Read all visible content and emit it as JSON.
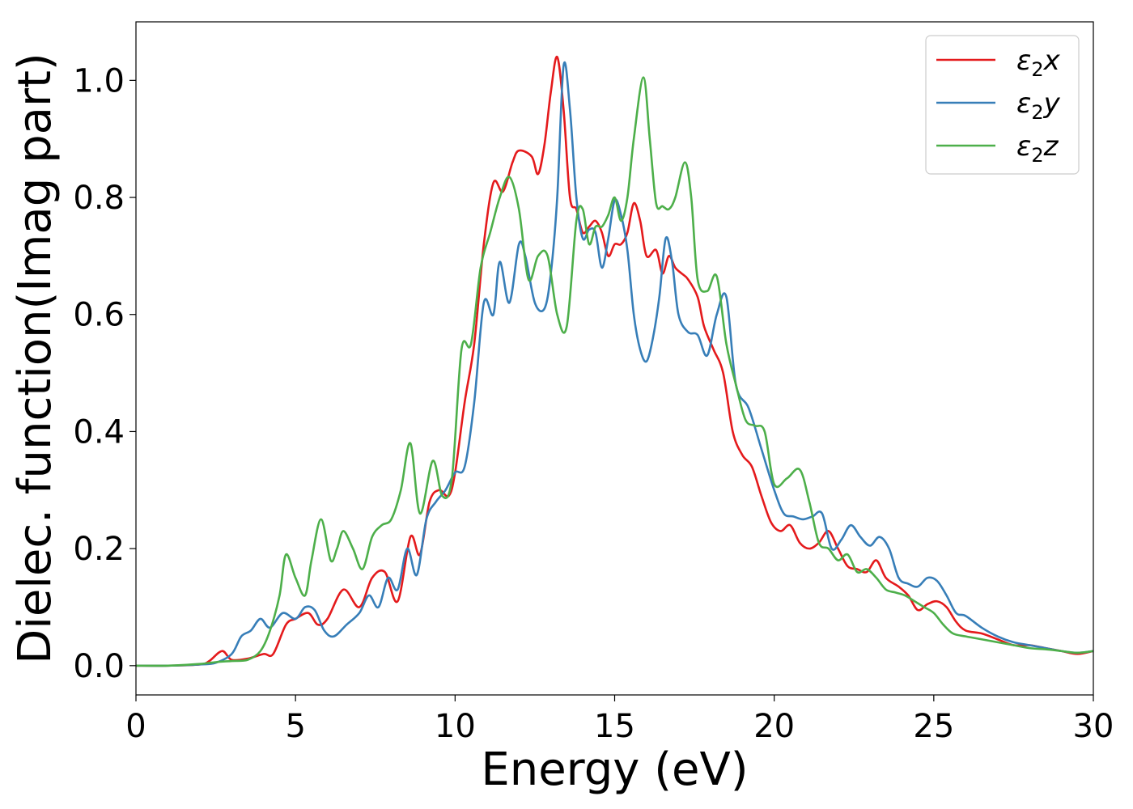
{
  "chart_data": {
    "type": "line",
    "title": "",
    "xlabel": "Energy (eV)",
    "ylabel": "Dielec. function(Imag part)",
    "xlim": [
      0,
      30
    ],
    "ylim": [
      -0.05,
      1.1
    ],
    "xticks": [
      0,
      5,
      10,
      15,
      20,
      25,
      30
    ],
    "yticks": [
      0.0,
      0.2,
      0.4,
      0.6,
      0.8,
      1.0
    ],
    "xtick_labels": [
      "0",
      "5",
      "10",
      "15",
      "20",
      "25",
      "30"
    ],
    "ytick_labels": [
      "0.0",
      "0.2",
      "0.4",
      "0.6",
      "0.8",
      "1.0"
    ],
    "grid": false,
    "legend_position": "top-right",
    "series": [
      {
        "name": "ε2x",
        "legend_base": "ε",
        "legend_sub": "2",
        "legend_tail": "x",
        "color": "#e41a1c",
        "x": [
          0,
          1,
          2,
          2.3,
          2.7,
          3.0,
          3.5,
          4.0,
          4.3,
          4.7,
          5.0,
          5.4,
          5.7,
          6.0,
          6.5,
          7.0,
          7.4,
          7.8,
          8.2,
          8.6,
          8.9,
          9.2,
          9.5,
          9.8,
          10.0,
          10.3,
          10.6,
          10.9,
          11.2,
          11.5,
          11.8,
          12.0,
          12.4,
          12.6,
          12.8,
          13.0,
          13.2,
          13.4,
          13.6,
          13.8,
          14.0,
          14.2,
          14.4,
          14.6,
          14.8,
          15.0,
          15.2,
          15.4,
          15.6,
          15.8,
          16.0,
          16.3,
          16.5,
          16.7,
          16.9,
          17.1,
          17.3,
          17.6,
          17.8,
          18.1,
          18.4,
          18.7,
          19.0,
          19.3,
          19.6,
          19.9,
          20.2,
          20.5,
          20.8,
          21.1,
          21.4,
          21.7,
          22.0,
          22.3,
          22.6,
          22.9,
          23.2,
          23.5,
          23.9,
          24.2,
          24.5,
          24.8,
          25.1,
          25.4,
          25.7,
          26.0,
          26.5,
          27.0,
          27.5,
          28.0,
          28.5,
          29.0,
          29.5,
          30.0
        ],
        "y": [
          0.0,
          0.0,
          0.002,
          0.008,
          0.025,
          0.01,
          0.012,
          0.02,
          0.02,
          0.07,
          0.08,
          0.09,
          0.07,
          0.08,
          0.13,
          0.1,
          0.15,
          0.16,
          0.11,
          0.22,
          0.19,
          0.28,
          0.3,
          0.29,
          0.33,
          0.45,
          0.55,
          0.72,
          0.825,
          0.81,
          0.86,
          0.88,
          0.87,
          0.84,
          0.89,
          0.98,
          1.04,
          0.95,
          0.8,
          0.78,
          0.74,
          0.75,
          0.76,
          0.74,
          0.7,
          0.72,
          0.72,
          0.74,
          0.79,
          0.76,
          0.7,
          0.71,
          0.67,
          0.7,
          0.68,
          0.67,
          0.66,
          0.63,
          0.58,
          0.54,
          0.5,
          0.4,
          0.36,
          0.34,
          0.29,
          0.245,
          0.23,
          0.24,
          0.21,
          0.2,
          0.21,
          0.23,
          0.2,
          0.17,
          0.165,
          0.16,
          0.18,
          0.15,
          0.135,
          0.12,
          0.095,
          0.105,
          0.11,
          0.1,
          0.075,
          0.06,
          0.055,
          0.045,
          0.035,
          0.035,
          0.03,
          0.025,
          0.02,
          0.025
        ]
      },
      {
        "name": "ε2y",
        "legend_base": "ε",
        "legend_sub": "2",
        "legend_tail": "y",
        "color": "#377eb8",
        "x": [
          0,
          1,
          2,
          2.5,
          3.0,
          3.3,
          3.6,
          3.9,
          4.2,
          4.6,
          5.0,
          5.3,
          5.6,
          5.9,
          6.2,
          6.6,
          7.0,
          7.3,
          7.6,
          7.9,
          8.2,
          8.5,
          8.8,
          9.1,
          9.4,
          9.7,
          10.0,
          10.3,
          10.6,
          10.9,
          11.2,
          11.4,
          11.7,
          12.0,
          12.2,
          12.5,
          12.8,
          13.0,
          13.2,
          13.4,
          13.6,
          13.8,
          14.0,
          14.2,
          14.4,
          14.6,
          14.8,
          15.0,
          15.2,
          15.4,
          15.6,
          15.8,
          16.0,
          16.2,
          16.4,
          16.6,
          16.8,
          17.0,
          17.3,
          17.6,
          17.9,
          18.2,
          18.5,
          18.8,
          19.2,
          19.6,
          20.0,
          20.3,
          20.6,
          20.9,
          21.2,
          21.5,
          21.8,
          22.1,
          22.4,
          22.7,
          23.0,
          23.3,
          23.6,
          23.9,
          24.2,
          24.5,
          24.8,
          25.1,
          25.4,
          25.7,
          26.0,
          26.5,
          27.0,
          27.5,
          28.0,
          28.5,
          29.0,
          29.5,
          30.0
        ],
        "y": [
          0.0,
          0.0,
          0.002,
          0.005,
          0.02,
          0.05,
          0.06,
          0.08,
          0.065,
          0.09,
          0.08,
          0.1,
          0.095,
          0.06,
          0.05,
          0.07,
          0.09,
          0.12,
          0.1,
          0.15,
          0.13,
          0.2,
          0.155,
          0.25,
          0.28,
          0.3,
          0.33,
          0.34,
          0.45,
          0.62,
          0.6,
          0.69,
          0.62,
          0.72,
          0.7,
          0.62,
          0.61,
          0.67,
          0.8,
          1.025,
          0.95,
          0.8,
          0.73,
          0.745,
          0.74,
          0.68,
          0.73,
          0.795,
          0.77,
          0.71,
          0.6,
          0.54,
          0.52,
          0.56,
          0.63,
          0.73,
          0.69,
          0.6,
          0.57,
          0.565,
          0.53,
          0.6,
          0.63,
          0.48,
          0.44,
          0.37,
          0.3,
          0.26,
          0.255,
          0.25,
          0.255,
          0.26,
          0.2,
          0.215,
          0.24,
          0.22,
          0.205,
          0.22,
          0.2,
          0.15,
          0.14,
          0.135,
          0.15,
          0.145,
          0.12,
          0.09,
          0.085,
          0.065,
          0.05,
          0.04,
          0.035,
          0.03,
          0.025,
          0.022,
          0.025
        ]
      },
      {
        "name": "ε2z",
        "legend_base": "ε",
        "legend_sub": "2",
        "legend_tail": "z",
        "color": "#4daf4a",
        "x": [
          0,
          1,
          2,
          2.5,
          3.0,
          3.5,
          3.9,
          4.2,
          4.5,
          4.7,
          5.0,
          5.3,
          5.5,
          5.8,
          6.1,
          6.3,
          6.5,
          6.8,
          7.1,
          7.4,
          7.7,
          8.0,
          8.3,
          8.6,
          8.9,
          9.3,
          9.6,
          9.9,
          10.2,
          10.5,
          10.8,
          11.1,
          11.4,
          11.7,
          12.0,
          12.3,
          12.6,
          12.9,
          13.2,
          13.5,
          13.8,
          14.0,
          14.2,
          14.4,
          14.6,
          14.8,
          15.0,
          15.2,
          15.4,
          15.6,
          15.9,
          16.1,
          16.3,
          16.5,
          16.7,
          16.9,
          17.2,
          17.4,
          17.6,
          17.9,
          18.2,
          18.5,
          18.8,
          19.1,
          19.4,
          19.7,
          20.0,
          20.4,
          20.8,
          21.1,
          21.4,
          21.7,
          22.0,
          22.3,
          22.6,
          22.9,
          23.2,
          23.5,
          23.8,
          24.1,
          24.4,
          24.7,
          25.0,
          25.3,
          25.6,
          26.0,
          26.5,
          27.0,
          27.5,
          28.0,
          28.5,
          29.0,
          29.5,
          30.0
        ],
        "y": [
          0.0,
          0.0,
          0.003,
          0.006,
          0.008,
          0.01,
          0.025,
          0.06,
          0.12,
          0.19,
          0.15,
          0.12,
          0.18,
          0.25,
          0.18,
          0.2,
          0.23,
          0.2,
          0.165,
          0.22,
          0.24,
          0.25,
          0.3,
          0.38,
          0.26,
          0.35,
          0.29,
          0.32,
          0.54,
          0.55,
          0.68,
          0.74,
          0.8,
          0.835,
          0.78,
          0.66,
          0.7,
          0.7,
          0.6,
          0.58,
          0.76,
          0.78,
          0.72,
          0.75,
          0.75,
          0.77,
          0.8,
          0.76,
          0.8,
          0.9,
          1.005,
          0.9,
          0.79,
          0.785,
          0.78,
          0.8,
          0.86,
          0.8,
          0.66,
          0.64,
          0.665,
          0.55,
          0.48,
          0.42,
          0.41,
          0.4,
          0.31,
          0.32,
          0.335,
          0.28,
          0.21,
          0.2,
          0.18,
          0.19,
          0.16,
          0.165,
          0.15,
          0.13,
          0.125,
          0.12,
          0.11,
          0.1,
          0.09,
          0.07,
          0.055,
          0.05,
          0.045,
          0.04,
          0.035,
          0.03,
          0.028,
          0.025,
          0.022,
          0.025
        ]
      }
    ]
  }
}
